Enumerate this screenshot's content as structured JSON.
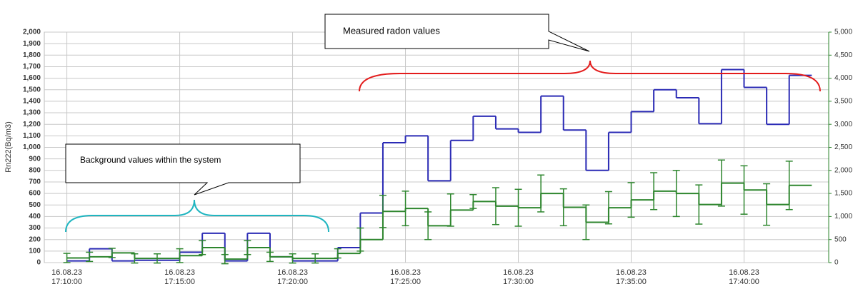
{
  "chart_data": {
    "type": "step",
    "ylabel": "Rn222(Bq/m3)",
    "annotations": [
      "Measured radon values",
      "Background values within the system"
    ],
    "x": [
      "16.08.23 17:10:00",
      "16.08.23 17:11:00",
      "16.08.23 17:12:00",
      "16.08.23 17:13:00",
      "16.08.23 17:14:00",
      "16.08.23 17:15:00",
      "16.08.23 17:16:00",
      "16.08.23 17:17:00",
      "16.08.23 17:18:00",
      "16.08.23 17:19:00",
      "16.08.23 17:20:00",
      "16.08.23 17:21:00",
      "16.08.23 17:22:00",
      "16.08.23 17:23:00",
      "16.08.23 17:24:00",
      "16.08.23 17:25:00",
      "16.08.23 17:26:00",
      "16.08.23 17:27:00",
      "16.08.23 17:28:00",
      "16.08.23 17:29:00",
      "16.08.23 17:30:00",
      "16.08.23 17:31:00",
      "16.08.23 17:32:00",
      "16.08.23 17:33:00",
      "16.08.23 17:34:00",
      "16.08.23 17:35:00",
      "16.08.23 17:36:00",
      "16.08.23 17:37:00",
      "16.08.23 17:38:00",
      "16.08.23 17:39:00",
      "16.08.23 17:40:00",
      "16.08.23 17:41:00",
      "16.08.23 17:42:00"
    ],
    "series": [
      {
        "color": "#2b2bb5",
        "axis": "y",
        "values": [
          15,
          120,
          15,
          20,
          20,
          90,
          255,
          15,
          255,
          50,
          15,
          15,
          130,
          430,
          1040,
          1100,
          710,
          1060,
          1270,
          1160,
          1130,
          1445,
          1150,
          800,
          1130,
          1310,
          1500,
          1430,
          1205,
          1675,
          1520,
          1200,
          1625
        ]
      },
      {
        "color": "#2e862e",
        "axis": "y2",
        "values": [
          100,
          125,
          210,
          90,
          90,
          150,
          325,
          75,
          325,
          125,
          90,
          90,
          200,
          500,
          1110,
          1175,
          800,
          1140,
          1325,
          1225,
          1190,
          1500,
          1200,
          875,
          1190,
          1360,
          1550,
          1500,
          1260,
          1725,
          1575,
          1260,
          1675
        ],
        "errors": [
          100,
          100,
          100,
          100,
          100,
          150,
          150,
          100,
          150,
          100,
          100,
          100,
          100,
          250,
          350,
          375,
          300,
          350,
          150,
          400,
          400,
          400,
          400,
          375,
          350,
          375,
          400,
          500,
          425,
          500,
          525,
          450,
          525
        ]
      }
    ],
    "xlim": [
      "16.08.23 17:09:00",
      "16.08.23 17:43:45"
    ],
    "xticks": [
      "16.08.23 17:10:00",
      "16.08.23 17:15:00",
      "16.08.23 17:20:00",
      "16.08.23 17:25:00",
      "16.08.23 17:30:00",
      "16.08.23 17:35:00",
      "16.08.23 17:40:00"
    ],
    "ylim": [
      0,
      2000
    ],
    "yticks": [
      0,
      100,
      200,
      300,
      400,
      500,
      600,
      700,
      800,
      900,
      {
        "value": 1000,
        "label": "1,000"
      },
      {
        "value": 1100,
        "label": "1,100"
      },
      {
        "value": 1200,
        "label": "1,200"
      },
      {
        "value": 1300,
        "label": "1,300"
      },
      {
        "value": 1400,
        "label": "1,400"
      },
      {
        "value": 1500,
        "label": "1,500"
      },
      {
        "value": 1600,
        "label": "1,600"
      },
      {
        "value": 1700,
        "label": "1,700"
      },
      {
        "value": 1800,
        "label": "1,800"
      },
      {
        "value": 1900,
        "label": "1,900"
      },
      {
        "value": 2000,
        "label": "2,000"
      }
    ],
    "y2lim": [
      0,
      5000
    ],
    "y2ticks": [
      0,
      500,
      {
        "value": 1000,
        "label": "1,000"
      },
      {
        "value": 1500,
        "label": "1,500"
      },
      {
        "value": 2000,
        "label": "2,000"
      },
      {
        "value": 2500,
        "label": "2,500"
      },
      {
        "value": 3000,
        "label": "3,000"
      },
      {
        "value": 3500,
        "label": "3,500"
      },
      {
        "value": 4000,
        "label": "4,000"
      },
      {
        "value": 4500,
        "label": "4,500"
      },
      {
        "value": 5000,
        "label": "5,000"
      }
    ],
    "grid": true
  }
}
